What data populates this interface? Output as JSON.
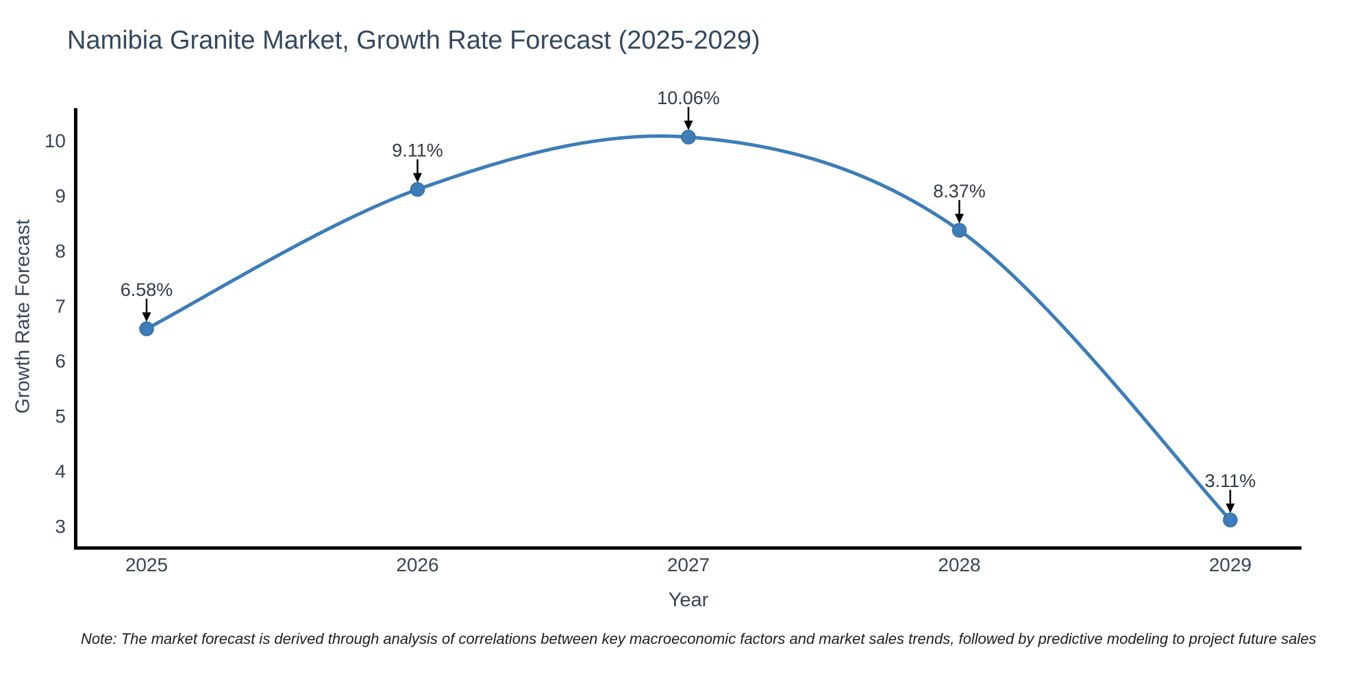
{
  "chart_data": {
    "type": "line",
    "title": "Namibia Granite Market, Growth Rate Forecast (2025-2029)",
    "xlabel": "Year",
    "ylabel": "Growth Rate Forecast",
    "categories": [
      "2025",
      "2026",
      "2027",
      "2028",
      "2029"
    ],
    "values": [
      6.58,
      9.11,
      10.06,
      8.37,
      3.11
    ],
    "point_labels": [
      "6.58%",
      "9.11%",
      "10.06%",
      "8.37%",
      "3.11%"
    ],
    "y_ticks": [
      3,
      4,
      5,
      6,
      7,
      8,
      9,
      10
    ],
    "ylim": [
      2.6,
      10.6
    ],
    "grid": false,
    "legend_position": "none",
    "line_color": "#3c7db8",
    "marker_color": "#3d7dba",
    "marker_edge_color": "#2f6da6",
    "spine_color": "#000000",
    "arrow_color": "#000000",
    "axis_text_color": "#3b4553",
    "annotation_text_color": "#333a43",
    "title_color": "#33475f",
    "note": "Note: The market forecast is derived through analysis of correlations between key macroeconomic factors and market sales trends, followed by predictive modeling to project future sales"
  }
}
